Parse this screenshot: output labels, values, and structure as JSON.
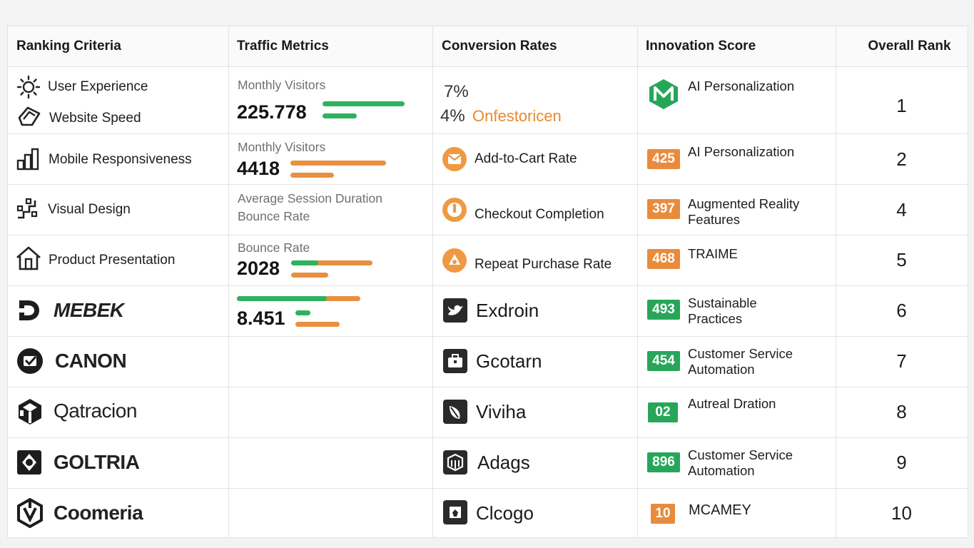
{
  "headers": {
    "criteria": "Ranking Criteria",
    "traffic": "Traffic Metrics",
    "conversion": "Conversion Rates",
    "innovation": "Innovation Score",
    "rank": "Overall Rank"
  },
  "criteria": [
    {
      "label": "User Experience",
      "icon": "sun-icon"
    },
    {
      "label": "Website Speed",
      "icon": "speed-tag-icon"
    },
    {
      "label": "Mobile Responsiveness",
      "icon": "bars-icon"
    },
    {
      "label": "Visual Design",
      "icon": "grid-icon"
    },
    {
      "label": "Product Presentation",
      "icon": "house-icon"
    },
    {
      "label": "MEBEK",
      "icon": "d-logo-icon"
    },
    {
      "label": "CANON",
      "icon": "check-circle-icon"
    },
    {
      "label": "Qatracion",
      "icon": "cube-logo-icon"
    },
    {
      "label": "GOLTRIA",
      "icon": "hex-logo-icon"
    },
    {
      "label": "Coomeria",
      "icon": "box-logo-icon"
    }
  ],
  "traffic": [
    {
      "label": "Monthly Visitors",
      "value": "225.778",
      "bars": [
        {
          "color": "green"
        },
        {
          "color": "green"
        }
      ]
    },
    {
      "label": "Monthly Visitors",
      "value": "4418",
      "bars": [
        {
          "color": "orange"
        },
        {
          "color": "orange"
        }
      ]
    },
    {
      "label": "Average Session Duration",
      "label2": "Bounce Rate"
    },
    {
      "label": "Bounce Rate",
      "value": "2028"
    },
    {
      "value": "8.451"
    }
  ],
  "conversion": [
    {
      "line1": "7%",
      "line2_pct": "4%",
      "line2_text": "Onfestoricen"
    },
    {
      "label": "Add-to-Cart Rate",
      "icon": "mail-icon"
    },
    {
      "label": "Checkout Completion",
      "icon": "info-icon"
    },
    {
      "label": "Repeat Purchase Rate",
      "icon": "bell-icon"
    },
    {
      "label": "Exdroin",
      "icon": "bird-icon"
    },
    {
      "label": "Gcotarn",
      "icon": "briefcase-icon"
    },
    {
      "label": "Viviha",
      "icon": "leaf-icon"
    },
    {
      "label": "Adags",
      "icon": "cube-icon"
    },
    {
      "label": "Clcogo",
      "icon": "lock-icon"
    }
  ],
  "innovation": [
    {
      "score": "",
      "label": "AI Personalization",
      "icon": "m-logo-icon"
    },
    {
      "score": "425",
      "label": "AI Personalization",
      "color": "orange"
    },
    {
      "score": "397",
      "label": "Augmented Reality Features",
      "color": "orange"
    },
    {
      "score": "468",
      "label": "TRAIME",
      "color": "orange"
    },
    {
      "score": "493",
      "label": "Sustainable Practices",
      "color": "green"
    },
    {
      "score": "454",
      "label": "Customer Service Automation",
      "color": "green"
    },
    {
      "score": "02",
      "label": "Autreal Dration",
      "color": "green"
    },
    {
      "score": "896",
      "label": "Customer Service Automation",
      "color": "green"
    },
    {
      "score": "10",
      "label": "MCAMEY",
      "color": "orange"
    }
  ],
  "ranks": [
    "1",
    "2",
    "4",
    "5",
    "6",
    "7",
    "8",
    "9",
    "10"
  ],
  "colors": {
    "green": "#2fb15f",
    "orange": "#e89040",
    "text": "#1c1c1c"
  }
}
